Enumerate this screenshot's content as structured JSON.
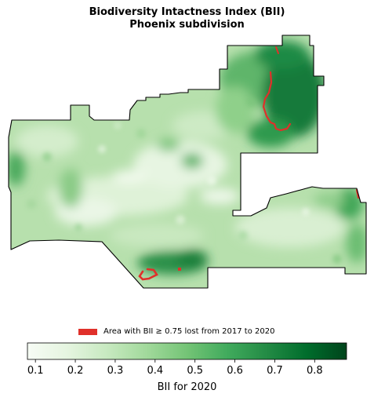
{
  "title": {
    "line1": "Biodiversity Intactness Index (BII)",
    "line2": "Phoenix subdivision"
  },
  "legend": {
    "label": "Area with BII ≥ 0.75 lost from 2017 to 2020",
    "color": "#e0302a"
  },
  "colorbar": {
    "label": "BII for 2020",
    "colormap": "Greens",
    "vmin": 0.08,
    "vmax": 0.88,
    "ticks": [
      "0.1",
      "0.2",
      "0.3",
      "0.4",
      "0.5",
      "0.6",
      "0.7",
      "0.8"
    ],
    "colors": [
      "#f7fcf5",
      "#e5f5e0",
      "#c7e9c0",
      "#a1d99b",
      "#74c476",
      "#41ab5d",
      "#238b45",
      "#006d2c",
      "#00441b"
    ]
  },
  "chart_data": {
    "type": "heatmap",
    "title": "Biodiversity Intactness Index (BII)",
    "subtitle": "Phoenix subdivision",
    "value_label": "BII for 2020",
    "value_range": [
      0.08,
      0.88
    ],
    "overlay": "Area with BII ≥ 0.75 lost from 2017 to 2020"
  }
}
